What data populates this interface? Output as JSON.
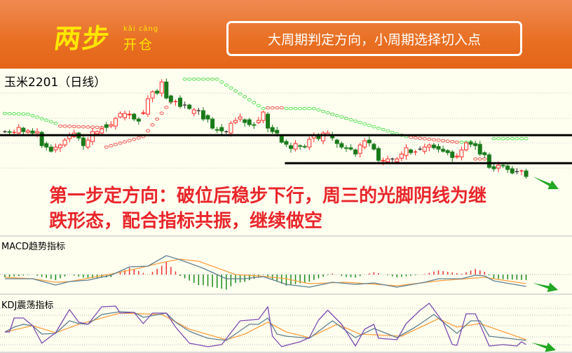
{
  "header": {
    "logo_main": "两步",
    "logo_pinyin": "kāi cāng",
    "logo_sub": "开仓",
    "title": "大周期判定方向，小周期选择切入点",
    "colors": {
      "background": "#e8702a",
      "logo": "#ffe600",
      "title": "#ffffff"
    }
  },
  "annotation": {
    "line1": "第一步定方向：破位后稳步下行，周三的光脚阴线为继",
    "line2": "跌形态，配合指标共振，继续做空",
    "color": "#e8262b"
  },
  "chart_data": [
    {
      "type": "candlestick",
      "title": "玉米2201（日线）",
      "note": "relative price units; no axis printed",
      "up_color": "#ff2a2a",
      "down_color": "#1a7a1a",
      "candles_open_close": [
        [
          112,
          112
        ],
        [
          112,
          111
        ],
        [
          111,
          111
        ],
        [
          110,
          118
        ],
        [
          117,
          112
        ],
        [
          111,
          113
        ],
        [
          113,
          110
        ],
        [
          110,
          112
        ],
        [
          111,
          92
        ],
        [
          95,
          90
        ],
        [
          90,
          84
        ],
        [
          86,
          90
        ],
        [
          89,
          93
        ],
        [
          93,
          100
        ],
        [
          102,
          107
        ],
        [
          105,
          110
        ],
        [
          110,
          103
        ],
        [
          103,
          92
        ],
        [
          90,
          100
        ],
        [
          98,
          112
        ],
        [
          109,
          112
        ],
        [
          110,
          116
        ],
        [
          122,
          118
        ],
        [
          120,
          122
        ],
        [
          120,
          131
        ],
        [
          133,
          138
        ],
        [
          132,
          138
        ],
        [
          136,
          137
        ],
        [
          137,
          130
        ],
        [
          130,
          127
        ],
        [
          138,
          139
        ],
        [
          137,
          159
        ],
        [
          160,
          169
        ],
        [
          170,
          167
        ],
        [
          167,
          183
        ],
        [
          183,
          160
        ],
        [
          163,
          155
        ],
        [
          155,
          155
        ],
        [
          160,
          148
        ],
        [
          150,
          150
        ],
        [
          150,
          145
        ],
        [
          138,
          143
        ],
        [
          142,
          142
        ],
        [
          142,
          130
        ],
        [
          135,
          130
        ],
        [
          130,
          117
        ],
        [
          115,
          114
        ],
        [
          118,
          113
        ],
        [
          112,
          112
        ],
        [
          110,
          124
        ],
        [
          125,
          128
        ],
        [
          130,
          133
        ],
        [
          129,
          125
        ],
        [
          129,
          122
        ],
        [
          122,
          121
        ],
        [
          125,
          128
        ],
        [
          128,
          140
        ],
        [
          137,
          117
        ],
        [
          118,
          112
        ],
        [
          114,
          110
        ],
        [
          105,
          97
        ],
        [
          98,
          94
        ],
        [
          92,
          88
        ],
        [
          87,
          95
        ],
        [
          92,
          91
        ],
        [
          91,
          90
        ],
        [
          90,
          101
        ],
        [
          103,
          106
        ],
        [
          108,
          102
        ],
        [
          99,
          110
        ],
        [
          108,
          110
        ],
        [
          107,
          103
        ],
        [
          100,
          95
        ],
        [
          95,
          90
        ],
        [
          89,
          88
        ],
        [
          89,
          87
        ],
        [
          86,
          80
        ],
        [
          81,
          93
        ],
        [
          90,
          99
        ],
        [
          100,
          96
        ],
        [
          94,
          87
        ],
        [
          88,
          71
        ],
        [
          70,
          71
        ],
        [
          69,
          73
        ],
        [
          73,
          73
        ],
        [
          69,
          73
        ],
        [
          74,
          80
        ],
        [
          78,
          89
        ],
        [
          86,
          82
        ],
        [
          83,
          83
        ],
        [
          87,
          87
        ],
        [
          84,
          90
        ],
        [
          90,
          93
        ],
        [
          93,
          89
        ],
        [
          91,
          87
        ],
        [
          87,
          84
        ],
        [
          85,
          82
        ],
        [
          83,
          75
        ],
        [
          76,
          77
        ],
        [
          76,
          86
        ],
        [
          86,
          96
        ],
        [
          97,
          94
        ],
        [
          95,
          92
        ],
        [
          94,
          80
        ],
        [
          82,
          79
        ],
        [
          79,
          61
        ],
        [
          62,
          59
        ],
        [
          60,
          64
        ],
        [
          64,
          63
        ],
        [
          63,
          58
        ],
        [
          59,
          53
        ],
        [
          55,
          55
        ],
        [
          56,
          56
        ],
        [
          56,
          48
        ]
      ],
      "sar_segments": [
        {
          "color": "#55e055",
          "points": [
            [
              0,
              138
            ],
            [
              5,
              137
            ],
            [
              11,
              124
            ]
          ]
        },
        {
          "color": "#f05050",
          "points": [
            [
              12,
              120
            ],
            [
              21,
              118
            ]
          ]
        },
        {
          "color": "#f05050",
          "points": [
            [
              22,
              90
            ],
            [
              30,
              105
            ],
            [
              36,
              155
            ]
          ]
        },
        {
          "color": "#55e055",
          "points": [
            [
              39,
              187
            ],
            [
              46,
              187
            ],
            [
              56,
              145
            ]
          ]
        },
        {
          "color": "#f05050",
          "points": [
            [
              57,
              146
            ],
            [
              60,
              146
            ]
          ]
        },
        {
          "color": "#55e055",
          "points": [
            [
              61,
              145
            ],
            [
              67,
              145
            ],
            [
              87,
              105
            ]
          ]
        },
        {
          "color": "#f05050",
          "points": [
            [
              88,
              104
            ],
            [
              98,
              97
            ]
          ]
        },
        {
          "color": "#55e055",
          "points": [
            [
              99,
              97
            ],
            [
              101,
              97
            ]
          ]
        },
        {
          "color": "#f05050",
          "points": [
            [
              102,
              73
            ],
            [
              104,
              73
            ]
          ]
        },
        {
          "color": "#55e055",
          "points": [
            [
              106,
              102
            ],
            [
              113,
              102
            ]
          ]
        }
      ],
      "support_resistance_lines": [
        {
          "value": 107,
          "from_index": 0
        },
        {
          "value": 67,
          "from_index": 61
        }
      ]
    },
    {
      "type": "line",
      "title": "MACD趋势指标",
      "series": [
        {
          "key": "DIF",
          "color": "#5f7f90",
          "points": [
            [
              0,
              -6
            ],
            [
              6,
              -6
            ],
            [
              11,
              -15
            ],
            [
              14,
              -10
            ],
            [
              18,
              -8
            ],
            [
              23,
              -1
            ],
            [
              27,
              11
            ],
            [
              31,
              12
            ],
            [
              35,
              27
            ],
            [
              38,
              21
            ],
            [
              43,
              9
            ],
            [
              48,
              -6
            ],
            [
              52,
              -6
            ],
            [
              56,
              -3
            ],
            [
              61,
              -14
            ],
            [
              66,
              -18
            ],
            [
              71,
              -11
            ],
            [
              76,
              -14
            ],
            [
              80,
              -12
            ],
            [
              85,
              -18
            ],
            [
              91,
              -11
            ],
            [
              94,
              -6
            ],
            [
              99,
              -6
            ],
            [
              102,
              -1
            ],
            [
              104,
              -2
            ],
            [
              106,
              -9
            ],
            [
              113,
              -17
            ]
          ]
        },
        {
          "key": "DEA",
          "color": "#ffa040",
          "points": [
            [
              0,
              -4
            ],
            [
              6,
              -6
            ],
            [
              11,
              -11
            ],
            [
              14,
              -10
            ],
            [
              19,
              -4
            ],
            [
              24,
              2
            ],
            [
              29,
              9
            ],
            [
              34,
              17
            ],
            [
              38,
              22
            ],
            [
              42,
              19
            ],
            [
              50,
              0
            ],
            [
              55,
              -2
            ],
            [
              61,
              -6
            ],
            [
              66,
              -13
            ],
            [
              74,
              -11
            ],
            [
              85,
              -16
            ],
            [
              94,
              -9
            ],
            [
              104,
              -4
            ],
            [
              113,
              -13
            ]
          ]
        }
      ],
      "histogram": "2*(DIF-DEA)"
    },
    {
      "type": "line",
      "title": "KDJ震荡指标",
      "series": [
        {
          "key": "K",
          "color": "#5f7f90",
          "points": [
            [
              0,
              26
            ],
            [
              2,
              33
            ],
            [
              4,
              37
            ],
            [
              6,
              35
            ],
            [
              8,
              23
            ],
            [
              11,
              24
            ],
            [
              14,
              42
            ],
            [
              16,
              38
            ],
            [
              18,
              37
            ],
            [
              21,
              51
            ],
            [
              25,
              55
            ],
            [
              28,
              54
            ],
            [
              30,
              47
            ],
            [
              35,
              53
            ],
            [
              37,
              40
            ],
            [
              40,
              27
            ],
            [
              44,
              17
            ],
            [
              48,
              14
            ],
            [
              53,
              37
            ],
            [
              55,
              37
            ],
            [
              57,
              46
            ],
            [
              59,
              23
            ],
            [
              61,
              20
            ],
            [
              66,
              17
            ],
            [
              71,
              42
            ],
            [
              76,
              18
            ],
            [
              80,
              31
            ],
            [
              85,
              18
            ],
            [
              89,
              33
            ],
            [
              93,
              51
            ],
            [
              98,
              24
            ],
            [
              101,
              42
            ],
            [
              103,
              42
            ],
            [
              105,
              20
            ],
            [
              113,
              14
            ]
          ]
        },
        {
          "key": "D",
          "color": "#ffa040",
          "points": [
            [
              0,
              26
            ],
            [
              6,
              35
            ],
            [
              11,
              25
            ],
            [
              16,
              37
            ],
            [
              25,
              53
            ],
            [
              34,
              51
            ],
            [
              40,
              30
            ],
            [
              48,
              15
            ],
            [
              52,
              23
            ],
            [
              57,
              40
            ],
            [
              61,
              26
            ],
            [
              66,
              18
            ],
            [
              72,
              37
            ],
            [
              77,
              23
            ],
            [
              86,
              20
            ],
            [
              94,
              45
            ],
            [
              98,
              33
            ],
            [
              103,
              38
            ],
            [
              113,
              15
            ]
          ]
        },
        {
          "key": "J",
          "color": "#7a4ab0",
          "points": [
            [
              0,
              26
            ],
            [
              1,
              26
            ],
            [
              2,
              46
            ],
            [
              4,
              46
            ],
            [
              6,
              35
            ],
            [
              8,
              10
            ],
            [
              11,
              25
            ],
            [
              14,
              58
            ],
            [
              16,
              40
            ],
            [
              18,
              37
            ],
            [
              21,
              62
            ],
            [
              24,
              63
            ],
            [
              25,
              53
            ],
            [
              28,
              54
            ],
            [
              30,
              38
            ],
            [
              32,
              53
            ],
            [
              35,
              53
            ],
            [
              37,
              33
            ],
            [
              40,
              10
            ],
            [
              44,
              5
            ],
            [
              47,
              8
            ],
            [
              51,
              42
            ],
            [
              55,
              44
            ],
            [
              57,
              62
            ],
            [
              58,
              20
            ],
            [
              60,
              5
            ],
            [
              61,
              7
            ],
            [
              64,
              12
            ],
            [
              66,
              18
            ],
            [
              68,
              43
            ],
            [
              70,
              57
            ],
            [
              73,
              37
            ],
            [
              76,
              6
            ],
            [
              78,
              30
            ],
            [
              80,
              37
            ],
            [
              81,
              17
            ],
            [
              85,
              15
            ],
            [
              87,
              38
            ],
            [
              90,
              57
            ],
            [
              92,
              67
            ],
            [
              95,
              40
            ],
            [
              97,
              8
            ],
            [
              98,
              7
            ],
            [
              100,
              52
            ],
            [
              102,
              52
            ],
            [
              105,
              6
            ],
            [
              108,
              8
            ],
            [
              111,
              6
            ],
            [
              112,
              12
            ],
            [
              113,
              8
            ]
          ]
        }
      ]
    }
  ]
}
